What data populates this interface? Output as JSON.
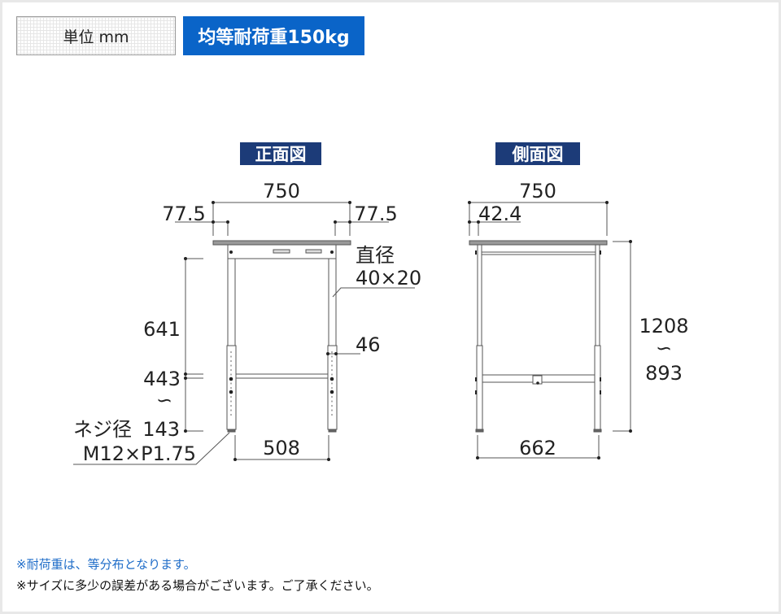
{
  "header": {
    "unit_label": "単位 mm",
    "load_badge": "均等耐荷重150kg",
    "load_color": "#0a64c8"
  },
  "front_view": {
    "title": "正面図",
    "width": "750",
    "left_offset": "77.5",
    "right_offset": "77.5",
    "pipe_label_1": "直径",
    "pipe_label_2": "40×20",
    "leg_width": "46",
    "upper_height": "641",
    "crossbar_height": "443",
    "range_symbol": "∽",
    "bolt_label": "ネジ径",
    "bottom_height": "143",
    "bolt_spec": "M12×P1.75",
    "inner_width": "508"
  },
  "side_view": {
    "title": "側面図",
    "depth": "750",
    "offset": "42.4",
    "height_max": "1208",
    "range_symbol": "∽",
    "height_min": "893",
    "inner_depth": "662"
  },
  "notes": [
    "※耐荷重は、等分布となります。",
    "※サイズに多少の誤差がある場合がございます。ご了承ください。"
  ],
  "colors": {
    "title_bg": "#1c3b78",
    "note_accent": "#1e6cc8"
  }
}
